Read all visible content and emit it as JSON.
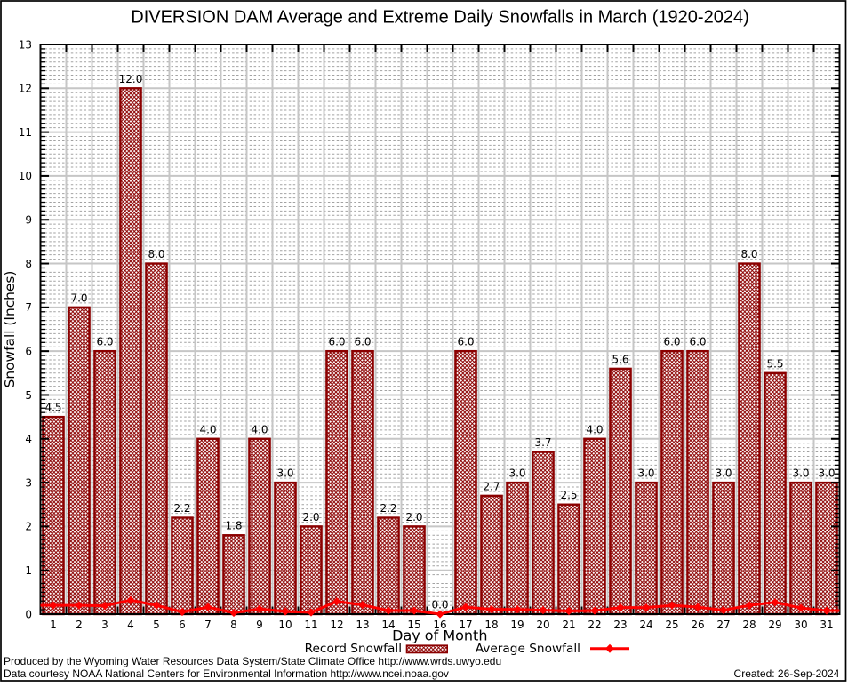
{
  "title": "DIVERSION DAM Average and Extreme Daily Snowfalls in March (1920-2024)",
  "footer": {
    "line1": "Produced by the Wyoming Water Resources Data System/State Climate Office http://www.wrds.uwyo.edu",
    "line2": "Data courtesy NOAA National Centers for Environmental Information http://www.ncei.noaa.gov",
    "created": "Created: 26-Sep-2024"
  },
  "legend": {
    "record_label": "Record Snowfall",
    "average_label": "Average Snowfall"
  },
  "colors": {
    "record_dark_red": "#8b0000",
    "average_red": "#ff0000",
    "grid_major_gray": "#c6c6c6",
    "grid_minor_gray": "#a2a2a2",
    "axis_black": "#000000",
    "background": "#ffffff"
  },
  "chart_data": {
    "type": "bar",
    "title": "DIVERSION DAM Average and Extreme Daily Snowfalls in March (1920-2024)",
    "xlabel": "Day of Month",
    "ylabel": "Snowfall (Inches)",
    "ylim": [
      0,
      13
    ],
    "xticks_days": [
      1,
      2,
      3,
      4,
      5,
      6,
      7,
      8,
      9,
      10,
      11,
      12,
      13,
      14,
      15,
      16,
      17,
      18,
      19,
      20,
      21,
      22,
      23,
      24,
      25,
      26,
      27,
      28,
      29,
      30,
      31
    ],
    "yticks": [
      0,
      1,
      2,
      3,
      4,
      5,
      6,
      7,
      8,
      9,
      10,
      11,
      12,
      13
    ],
    "grid": "major solid + 0.1 minor dashed horizontal",
    "legend_position": "below x-axis label",
    "categories": [
      1,
      2,
      3,
      4,
      5,
      6,
      7,
      8,
      9,
      10,
      11,
      12,
      13,
      14,
      15,
      16,
      17,
      18,
      19,
      20,
      21,
      22,
      23,
      24,
      25,
      26,
      27,
      28,
      29,
      30,
      31
    ],
    "series": [
      {
        "name": "Record Snowfall",
        "type": "bar",
        "style": "dark-red crosshatch bars with value labels",
        "values": [
          4.5,
          7.0,
          6.0,
          12.0,
          8.0,
          2.2,
          4.0,
          1.8,
          4.0,
          3.0,
          2.0,
          6.0,
          6.0,
          2.2,
          2.0,
          0.0,
          6.0,
          2.7,
          3.0,
          3.7,
          2.5,
          4.0,
          5.6,
          3.0,
          6.0,
          6.0,
          3.0,
          8.0,
          5.5,
          3.0,
          3.0
        ],
        "value_labels": [
          "4.5",
          "7.0",
          "6.0",
          "12.0",
          "8.0",
          "2.2",
          "4.0",
          "1.8",
          "4.0",
          "3.0",
          "2.0",
          "6.0",
          "6.0",
          "2.2",
          "2.0",
          "0.0",
          "6.0",
          "2.7",
          "3.0",
          "3.7",
          "2.5",
          "4.0",
          "5.6",
          "3.0",
          "6.0",
          "6.0",
          "3.0",
          "8.0",
          "5.5",
          "3.0",
          "3.0"
        ]
      },
      {
        "name": "Average Snowfall",
        "type": "line",
        "style": "red line with filled diamond markers",
        "values": [
          0.2,
          0.2,
          0.19,
          0.32,
          0.2,
          0.05,
          0.16,
          0.03,
          0.12,
          0.06,
          0.04,
          0.29,
          0.21,
          0.08,
          0.08,
          0.0,
          0.16,
          0.11,
          0.11,
          0.09,
          0.07,
          0.08,
          0.15,
          0.15,
          0.2,
          0.16,
          0.09,
          0.2,
          0.27,
          0.14,
          0.08
        ]
      }
    ]
  }
}
